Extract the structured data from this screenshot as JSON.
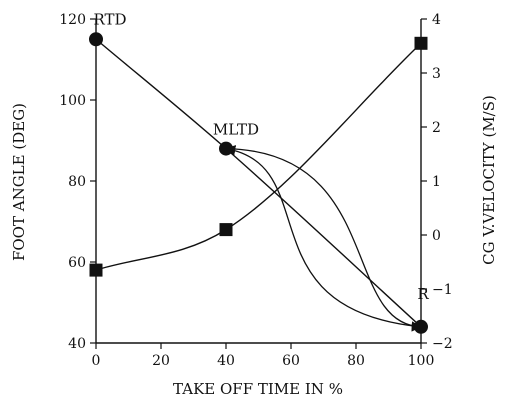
{
  "chart_data": {
    "type": "line",
    "xlabel": "TAKE OFF TIME IN %",
    "ylabel_left": "FOOT ANGLE (DEG)",
    "ylabel_right": "CG V.VELOCITY (M/S)",
    "xlim": [
      0,
      100
    ],
    "ylim_left": [
      40,
      120
    ],
    "ylim_right": [
      -2,
      4
    ],
    "x_ticks": [
      0,
      20,
      40,
      60,
      80,
      100
    ],
    "y_ticks_left": [
      40,
      60,
      80,
      100,
      120
    ],
    "y_ticks_right": [
      -2,
      -1,
      0,
      1,
      2,
      3,
      4
    ],
    "grid": false,
    "series": [
      {
        "axis": "left",
        "marker": "circle",
        "x": [
          0,
          40,
          100
        ],
        "values": [
          115,
          88,
          44
        ]
      },
      {
        "axis": "right",
        "marker": "square",
        "x": [
          0,
          40,
          100
        ],
        "values": [
          -0.65,
          0.1,
          3.55
        ]
      }
    ],
    "annotations": [
      {
        "text": "RTD",
        "x": 0,
        "y": 115,
        "axis": "left"
      },
      {
        "text": "MLTD",
        "x": 40,
        "y": 88,
        "axis": "left"
      },
      {
        "text": "R",
        "x": 100,
        "y": 44,
        "axis": "left"
      }
    ],
    "arrows": [
      {
        "from": [
          40,
          88
        ],
        "to": [
          100,
          44
        ],
        "axis": "left"
      },
      {
        "from": [
          100,
          44
        ],
        "to": [
          40,
          88
        ],
        "axis": "left"
      }
    ]
  }
}
